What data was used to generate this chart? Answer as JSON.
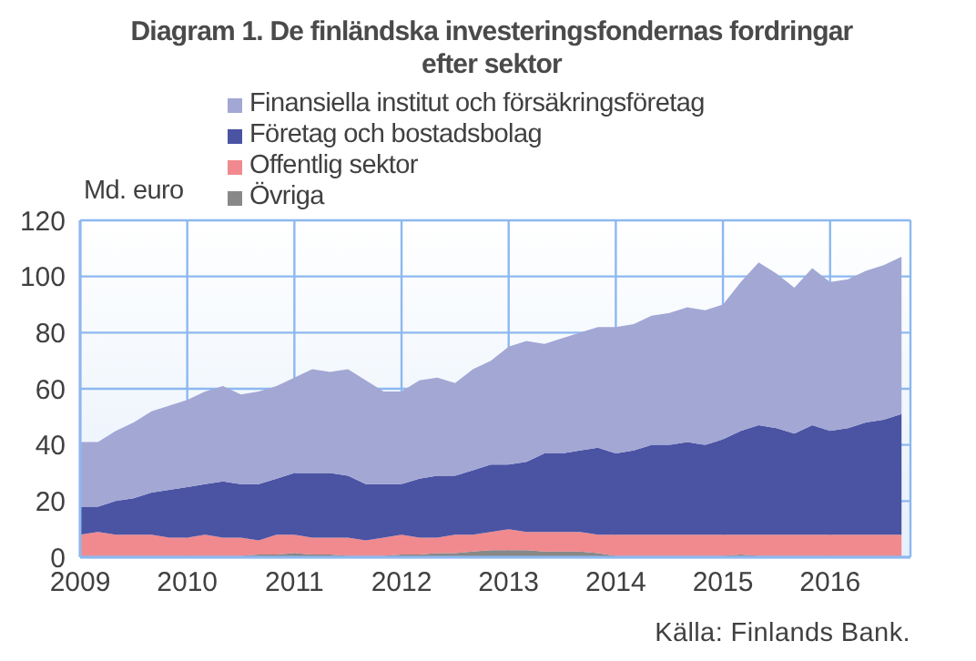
{
  "chart_data": {
    "type": "area",
    "title": "Diagram 1. De finländska investeringsfondernas fordringar efter sektor",
    "ylabel": "Md. euro",
    "annotations": [
      "Källa: Finlands Bank."
    ],
    "stacked": true,
    "grid": true,
    "legend": "top",
    "xlim": [
      "2009-01",
      "2016-10"
    ],
    "xticks": [
      "2009",
      "2010",
      "2011",
      "2012",
      "2013",
      "2014",
      "2015",
      "2016"
    ],
    "ylim": [
      0,
      120
    ],
    "yticks": [
      0,
      20,
      40,
      60,
      80,
      100,
      120
    ],
    "x": [
      "2009-01",
      "2009-03",
      "2009-05",
      "2009-07",
      "2009-09",
      "2009-11",
      "2010-01",
      "2010-03",
      "2010-05",
      "2010-07",
      "2010-09",
      "2010-11",
      "2011-01",
      "2011-03",
      "2011-05",
      "2011-07",
      "2011-09",
      "2011-11",
      "2012-01",
      "2012-03",
      "2012-05",
      "2012-07",
      "2012-09",
      "2012-11",
      "2013-01",
      "2013-03",
      "2013-05",
      "2013-07",
      "2013-09",
      "2013-11",
      "2014-01",
      "2014-03",
      "2014-05",
      "2014-07",
      "2014-09",
      "2014-11",
      "2015-01",
      "2015-03",
      "2015-05",
      "2015-07",
      "2015-09",
      "2015-11",
      "2016-01",
      "2016-03",
      "2016-05",
      "2016-07",
      "2016-09"
    ],
    "series": [
      {
        "name": "Övriga",
        "color": "#888888",
        "values": [
          0.5,
          0.5,
          0.5,
          0.5,
          0.5,
          0.5,
          0.5,
          0.5,
          0.5,
          0.5,
          1,
          1,
          1.5,
          1,
          1,
          0.5,
          0.5,
          0.5,
          1,
          1,
          1.5,
          1.5,
          2,
          2.5,
          2.5,
          2.5,
          2,
          2,
          2,
          1.5,
          0.5,
          0.5,
          0.5,
          0.5,
          0.5,
          0.5,
          0.5,
          1,
          0.5,
          0.5,
          0.5,
          0.5,
          0.5,
          0.5,
          0.5,
          0.5,
          0.5
        ]
      },
      {
        "name": "Offentlig sektor",
        "color": "#f08a8f",
        "values": [
          7.5,
          8.5,
          7.5,
          7.5,
          7.5,
          6.5,
          6.5,
          7.5,
          6.5,
          6.5,
          5,
          7,
          6.5,
          6,
          6,
          6.5,
          5.5,
          6.5,
          7,
          6,
          5.5,
          6.5,
          6,
          6.5,
          7.5,
          6.5,
          7,
          7,
          7,
          6.5,
          7.5,
          7.5,
          7.5,
          7.5,
          7.5,
          7.5,
          7.5,
          7,
          7.5,
          7.5,
          7.5,
          7.5,
          7.5,
          7.5,
          7.5,
          7.5,
          7.5
        ]
      },
      {
        "name": "Företag och bostadsbolag",
        "color": "#4b53a3",
        "values": [
          10,
          9,
          12,
          13,
          15,
          17,
          18,
          18,
          20,
          19,
          20,
          20,
          22,
          23,
          23,
          22,
          20,
          19,
          18,
          21,
          22,
          21,
          23,
          24,
          23,
          25,
          28,
          28,
          29,
          31,
          29,
          30,
          32,
          32,
          33,
          32,
          34,
          37,
          39,
          38,
          36,
          39,
          37,
          38,
          40,
          41,
          43
        ]
      },
      {
        "name": "Finansiella institut och försäkringsföretag",
        "color": "#a3a7d4",
        "values": [
          23,
          23,
          25,
          27,
          29,
          30,
          31,
          33,
          34,
          32,
          33,
          33,
          34,
          37,
          36,
          38,
          37,
          33,
          33,
          35,
          35,
          33,
          36,
          37,
          42,
          43,
          39,
          41,
          42,
          43,
          45,
          45,
          46,
          47,
          48,
          48,
          48,
          53,
          58,
          55,
          52,
          56,
          53,
          53,
          54,
          55,
          56
        ]
      }
    ]
  }
}
